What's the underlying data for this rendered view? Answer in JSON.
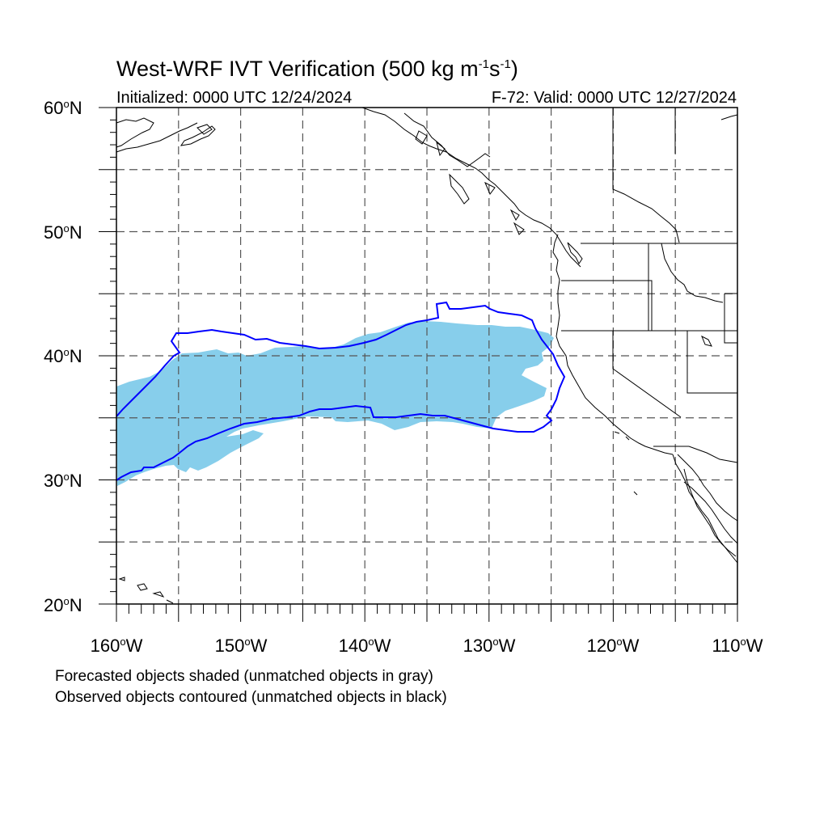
{
  "title": {
    "main": "West-WRF IVT Verification (500 kg m",
    "exp1": "-1",
    "mid": "s",
    "exp2": "-1",
    "end": ")"
  },
  "subtitle": {
    "initialized": "Initialized: 0000 UTC 12/24/2024",
    "valid": "F-72: Valid: 0000 UTC 12/27/2024"
  },
  "map": {
    "projection": "cylindrical equidistant",
    "lon_range": [
      -160,
      -110
    ],
    "lat_range": [
      20,
      60
    ],
    "grid": "dashed, every 5 degrees",
    "lat_labels": [
      "60",
      "50",
      "40",
      "30",
      "20"
    ],
    "lat_suffix": "N",
    "lon_labels": [
      "160",
      "150",
      "140",
      "130",
      "120",
      "110"
    ],
    "lon_suffix": "W",
    "forecast_color": "#87CEEB",
    "observed_color": "#0000FF",
    "coastline_color": "#000000"
  },
  "notes": {
    "line1": "Forecasted objects shaded (unmatched objects in gray)",
    "line2": "Observed objects contoured (unmatched objects in black)"
  }
}
